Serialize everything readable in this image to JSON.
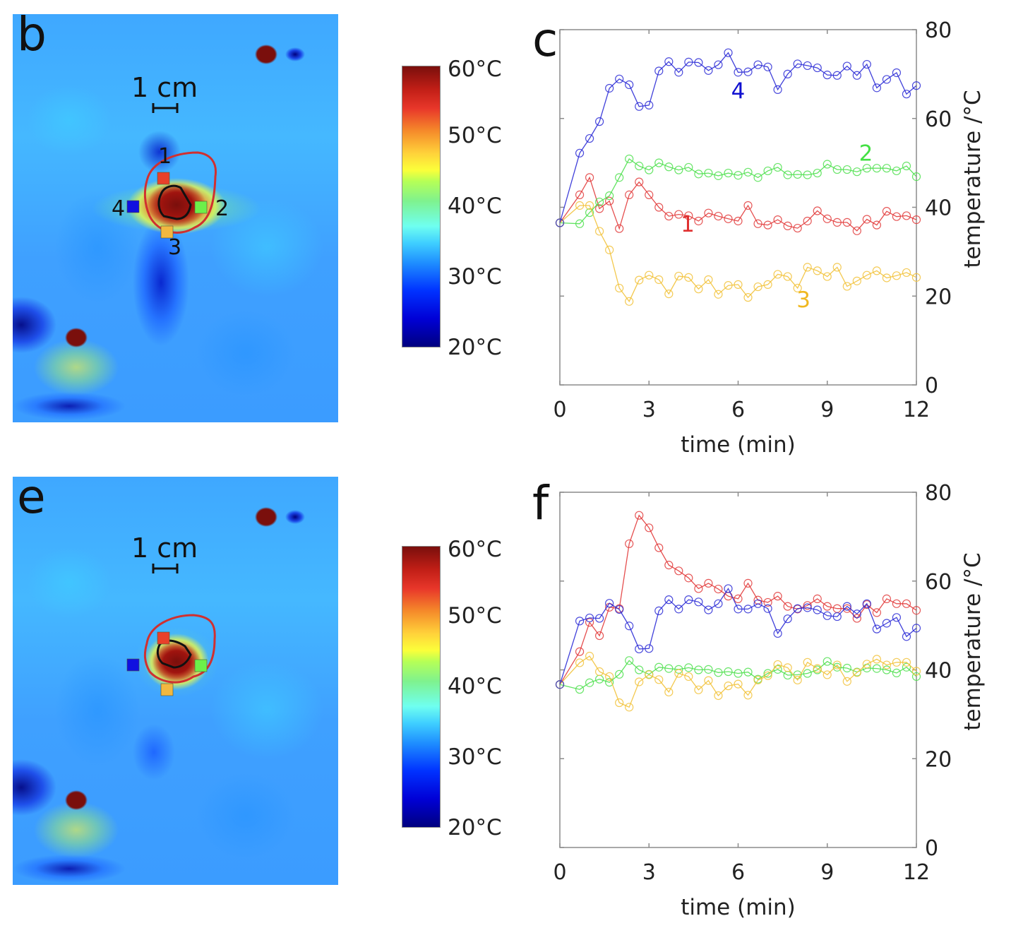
{
  "figure": {
    "panels": {
      "b": {
        "letter": "b",
        "scale_bar": "1 cm",
        "point_labels": [
          "1",
          "2",
          "3",
          "4"
        ]
      },
      "e": {
        "letter": "e",
        "scale_bar": "1 cm"
      },
      "c": {
        "letter": "c"
      },
      "f": {
        "letter": "f"
      }
    },
    "colorbar": {
      "min": 20,
      "max": 60,
      "tick_labels": [
        "60°C",
        "50°C",
        "40°C",
        "30°C",
        "20°C"
      ],
      "colormap": "jet"
    },
    "series_colors": {
      "1": "#e23b3b",
      "2": "#4fe04f",
      "3": "#f2c23a",
      "4": "#2b2bd6"
    },
    "label_colors": {
      "1": "#e03030",
      "2": "#44e044",
      "3": "#f0b820",
      "4": "#1010d0"
    }
  },
  "chart_data": [
    {
      "panel": "c",
      "type": "line",
      "title": "",
      "xlabel": "time (min)",
      "ylabel": "temperature /°C",
      "xlim": [
        0,
        12
      ],
      "ylim": [
        0,
        80
      ],
      "xticks": [
        0,
        3,
        6,
        9,
        12
      ],
      "yticks": [
        0,
        20,
        40,
        60,
        80
      ],
      "grid": false,
      "marker": "circle",
      "x": [
        0,
        0.667,
        1.0,
        1.333,
        1.667,
        2.0,
        2.333,
        2.667,
        3.0,
        3.333,
        3.667,
        4.0,
        4.333,
        4.667,
        5.0,
        5.333,
        5.667,
        6.0,
        6.333,
        6.667,
        7.0,
        7.333,
        7.667,
        8.0,
        8.333,
        8.667,
        9.0,
        9.333,
        9.667,
        10.0,
        10.333,
        10.667,
        11.0,
        11.333,
        11.667,
        12.0
      ],
      "series": [
        {
          "name": "1",
          "label": "1",
          "label_at": [
            4.3,
            34.5
          ],
          "values": [
            36.5,
            42.8,
            46.7,
            39.7,
            41.4,
            35.2,
            42.8,
            45.7,
            42.8,
            40.0,
            38.0,
            38.4,
            38.1,
            36.9,
            38.7,
            38.0,
            37.4,
            36.9,
            40.4,
            36.3,
            36.0,
            37.2,
            35.8,
            35.3,
            36.9,
            39.2,
            37.4,
            36.6,
            36.6,
            34.7,
            37.3,
            36.0,
            39.1,
            37.9,
            38.1,
            37.2
          ]
        },
        {
          "name": "2",
          "label": "2",
          "label_at": [
            10.3,
            50.5
          ],
          "values": [
            36.5,
            36.3,
            38.8,
            41.2,
            42.6,
            46.7,
            50.9,
            49.3,
            48.4,
            50.0,
            49.1,
            48.4,
            49.0,
            47.5,
            47.7,
            47.1,
            47.7,
            47.2,
            47.9,
            46.7,
            48.2,
            49.0,
            47.3,
            47.4,
            47.3,
            47.7,
            49.7,
            48.5,
            48.5,
            48.0,
            48.8,
            48.8,
            48.8,
            48.2,
            49.3,
            46.9
          ]
        },
        {
          "name": "3",
          "label": "3",
          "label_at": [
            8.2,
            17.5
          ],
          "values": [
            36.5,
            40.4,
            40.4,
            34.6,
            30.4,
            21.8,
            18.8,
            23.6,
            24.7,
            23.7,
            20.5,
            24.5,
            24.2,
            21.6,
            23.7,
            20.4,
            22.4,
            22.6,
            19.7,
            22.1,
            22.6,
            24.9,
            24.4,
            21.8,
            26.5,
            25.7,
            24.4,
            26.5,
            22.2,
            23.4,
            24.7,
            25.7,
            24.1,
            24.6,
            25.3,
            24.2
          ]
        },
        {
          "name": "4",
          "label": "4",
          "label_at": [
            6.0,
            64.5
          ],
          "values": [
            36.5,
            52.2,
            55.5,
            59.3,
            66.8,
            68.9,
            67.6,
            62.7,
            63.0,
            70.7,
            72.8,
            70.4,
            72.7,
            72.6,
            70.8,
            72.1,
            74.8,
            70.4,
            70.5,
            72.1,
            71.6,
            66.5,
            70.0,
            72.3,
            71.9,
            71.4,
            69.8,
            69.7,
            71.8,
            69.7,
            72.2,
            66.9,
            68.8,
            70.3,
            65.5,
            67.4
          ]
        }
      ]
    },
    {
      "panel": "f",
      "type": "line",
      "title": "",
      "xlabel": "time (min)",
      "ylabel": "temperature /°C",
      "xlim": [
        0,
        12
      ],
      "ylim": [
        0,
        80
      ],
      "xticks": [
        0,
        3,
        6,
        9,
        12
      ],
      "yticks": [
        0,
        20,
        40,
        60,
        80
      ],
      "grid": false,
      "marker": "circle",
      "x": [
        0,
        0.667,
        1.0,
        1.333,
        1.667,
        2.0,
        2.333,
        2.667,
        3.0,
        3.333,
        3.667,
        4.0,
        4.333,
        4.667,
        5.0,
        5.333,
        5.667,
        6.0,
        6.333,
        6.667,
        7.0,
        7.333,
        7.667,
        8.0,
        8.333,
        8.667,
        9.0,
        9.333,
        9.667,
        10.0,
        10.333,
        10.667,
        11.0,
        11.333,
        11.667,
        12.0
      ],
      "series": [
        {
          "name": "1",
          "values": [
            36.7,
            44.1,
            50.7,
            47.7,
            54.1,
            53.8,
            68.4,
            74.8,
            72.0,
            67.5,
            63.6,
            62.3,
            60.7,
            58.3,
            59.5,
            58.2,
            56.6,
            56.0,
            59.5,
            55.7,
            55.2,
            56.6,
            54.3,
            53.7,
            54.5,
            56.0,
            54.3,
            53.8,
            53.8,
            51.6,
            54.7,
            52.9,
            56.0,
            54.9,
            54.9,
            53.4
          ]
        },
        {
          "name": "2",
          "values": [
            36.7,
            35.6,
            37.1,
            37.9,
            37.2,
            39.0,
            42.1,
            40.0,
            39.0,
            40.6,
            40.3,
            40.1,
            40.5,
            40.0,
            40.1,
            39.4,
            39.6,
            39.2,
            39.5,
            37.9,
            39.2,
            40.1,
            38.8,
            38.9,
            39.2,
            40.0,
            41.9,
            40.6,
            40.4,
            39.5,
            40.4,
            40.3,
            40.0,
            39.3,
            40.6,
            38.5
          ]
        },
        {
          "name": "3",
          "values": [
            36.7,
            41.6,
            43.1,
            39.6,
            38.5,
            32.6,
            31.6,
            37.3,
            38.9,
            37.8,
            35.0,
            39.2,
            38.5,
            35.5,
            37.6,
            34.2,
            36.4,
            36.8,
            34.3,
            37.7,
            38.7,
            41.2,
            40.5,
            37.7,
            41.7,
            40.3,
            38.9,
            41.1,
            37.4,
            39.4,
            41.3,
            42.4,
            41.1,
            41.7,
            41.7,
            39.7
          ]
        },
        {
          "name": "4",
          "values": [
            36.7,
            51.0,
            51.7,
            51.6,
            55.0,
            53.6,
            49.9,
            44.7,
            44.8,
            53.3,
            55.8,
            53.7,
            55.8,
            55.3,
            53.5,
            54.9,
            58.3,
            53.7,
            53.7,
            54.9,
            53.8,
            48.2,
            51.5,
            53.8,
            54.0,
            53.5,
            52.2,
            52.0,
            54.3,
            52.6,
            54.9,
            49.2,
            50.5,
            51.8,
            47.5,
            49.4
          ]
        }
      ]
    }
  ]
}
